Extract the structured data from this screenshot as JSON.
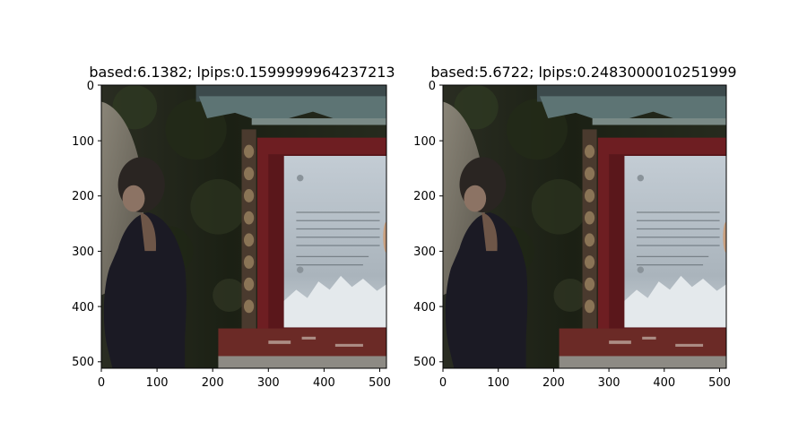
{
  "panels": [
    {
      "title": "based:6.1382; lpips:0.1599999964237213",
      "x_ticks": [
        "0",
        "100",
        "200",
        "300",
        "400",
        "500"
      ],
      "y_ticks": [
        "0",
        "100",
        "200",
        "300",
        "400",
        "500"
      ]
    },
    {
      "title": "based:5.6722; lpips:0.2483000010251999",
      "x_ticks": [
        "0",
        "100",
        "200",
        "300",
        "400",
        "500"
      ],
      "y_ticks": [
        "0",
        "100",
        "200",
        "300",
        "400",
        "500"
      ]
    }
  ],
  "image_extent": [
    0,
    512
  ],
  "colors": {
    "background": "#ffffff",
    "sign_panel": "#b8c3cc",
    "red_frame": "#6e1e22",
    "foliage": "#1c2414",
    "person_shirt": "#1b1a24"
  }
}
